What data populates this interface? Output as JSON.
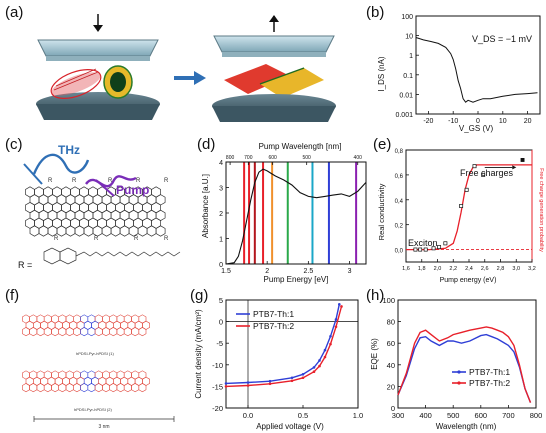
{
  "labels": {
    "a": "(a)",
    "b": "(b)",
    "c": "(c)",
    "d": "(d)",
    "e": "(e)",
    "f": "(f)",
    "g": "(g)",
    "h": "(h)"
  },
  "panel_c": {
    "thz": "THz",
    "pump": "Pump",
    "r_eq": "R =",
    "r": "R"
  },
  "panel_f": {
    "top_caption": "hPDSI-Pyr-hPDSI (1)",
    "bottom_caption": "hPDSI-Pyr-hPDSI (2)",
    "scale": "3 nm"
  },
  "colors": {
    "blue": "#2f3fd6",
    "red": "#e8202a",
    "orange_red": "#e0453a",
    "purple": "#7a2db8",
    "green": "#2aa94a"
  },
  "chart_data": [
    {
      "id": "b",
      "type": "line",
      "annotation": "V_DS = −1 mV",
      "ylabel": "I_DS (nA)",
      "xlabel": "V_GS (V)",
      "yscale": "log",
      "ylim": [
        0.001,
        100
      ],
      "xlim": [
        -25,
        25
      ],
      "yticks": [
        "100",
        "10",
        "1",
        "0.1",
        "0.01",
        "0.001"
      ],
      "xticks": [
        "-20",
        "-10",
        "0",
        "10",
        "20"
      ],
      "x": [
        -25,
        -22,
        -19,
        -16,
        -13,
        -11,
        -10,
        -9,
        -8,
        -7,
        -6,
        -5,
        -4,
        -2,
        0,
        2,
        5,
        10,
        15,
        20,
        24
      ],
      "y": [
        8,
        6,
        5,
        4,
        2.5,
        1.2,
        0.6,
        0.2,
        0.05,
        0.02,
        0.006,
        0.004,
        0.005,
        0.004,
        0.005,
        0.006,
        0.006,
        0.008,
        0.01,
        0.011,
        0.012
      ]
    },
    {
      "id": "d",
      "type": "line",
      "title": "Pump Wavelength [nm]",
      "xlabel": "Pump Energy [eV]",
      "ylabel": "Absorbance [a.U.]",
      "xlim": [
        1.5,
        3.2
      ],
      "ylim": [
        0,
        4
      ],
      "xticks": [
        "1.5",
        "2",
        "2.5",
        "3"
      ],
      "yticks": [
        "0",
        "1",
        "2",
        "3",
        "4"
      ],
      "top_ticks": [
        "1000",
        "900",
        "800",
        "700",
        "600",
        "500",
        "400"
      ],
      "x": [
        1.5,
        1.6,
        1.65,
        1.7,
        1.75,
        1.8,
        1.85,
        1.9,
        1.95,
        2.0,
        2.05,
        2.1,
        2.2,
        2.3,
        2.4,
        2.5,
        2.6,
        2.7,
        2.8,
        2.9,
        3.0,
        3.1,
        3.2
      ],
      "y": [
        0.0,
        0.05,
        0.3,
        0.9,
        1.7,
        2.5,
        3.2,
        3.6,
        3.72,
        3.65,
        3.55,
        3.45,
        3.3,
        3.1,
        2.8,
        2.65,
        2.6,
        2.65,
        2.7,
        2.75,
        2.65,
        2.85,
        3.2
      ],
      "pump_lines": [
        {
          "energy": 1.72,
          "color": "#e8202a"
        },
        {
          "energy": 1.78,
          "color": "#e8202a"
        },
        {
          "energy": 1.85,
          "color": "#b3151c"
        },
        {
          "energy": 1.95,
          "color": "#e8202a"
        },
        {
          "energy": 2.06,
          "color": "#f0902c"
        },
        {
          "energy": 2.25,
          "color": "#2aa94a"
        },
        {
          "energy": 2.55,
          "color": "#1aa7c8"
        },
        {
          "energy": 2.75,
          "color": "#2f3fd6"
        },
        {
          "energy": 3.08,
          "color": "#8a1fb0"
        }
      ]
    },
    {
      "id": "e",
      "type": "scatter",
      "xlabel": "Pump energy (eV)",
      "ylabel": "Real conductivity",
      "ylabel_right": "Free charge generation probability",
      "xlim": [
        1.6,
        3.2
      ],
      "ylim": [
        -0.1,
        0.8
      ],
      "xticks": [
        "1,6",
        "1,8",
        "2,0",
        "2,2",
        "2,4",
        "2,6",
        "2,8",
        "3,0",
        "3,2"
      ],
      "yticks": [
        "0,0",
        "0,2",
        "0,4",
        "0,6",
        "0,8"
      ],
      "annotations": [
        "Exciton",
        "Free charges"
      ],
      "points_x": [
        1.72,
        1.78,
        1.85,
        1.95,
        2.02,
        2.1,
        2.3,
        2.37,
        2.47,
        2.58,
        3.08
      ],
      "points_y": [
        0.0,
        0.0,
        0.0,
        0.01,
        0.02,
        0.05,
        0.35,
        0.48,
        0.67,
        0.6,
        0.72
      ],
      "sigmoid_x": [
        1.6,
        1.9,
        2.1,
        2.2,
        2.25,
        2.3,
        2.35,
        2.4,
        2.45,
        2.5,
        2.7,
        3.2
      ],
      "sigmoid_y": [
        0.0,
        0.0,
        0.01,
        0.05,
        0.15,
        0.3,
        0.48,
        0.6,
        0.66,
        0.68,
        0.68,
        0.68
      ]
    },
    {
      "id": "g",
      "type": "line",
      "xlabel": "Applied voltage (V)",
      "ylabel": "Current density (mA/cm²)",
      "xlim": [
        -0.2,
        1.0
      ],
      "ylim": [
        -20,
        5
      ],
      "xticks": [
        "0.0",
        "0.5",
        "1.0"
      ],
      "yticks": [
        "-20",
        "-15",
        "-10",
        "-5",
        "0",
        "5"
      ],
      "series": [
        {
          "name": "PTB7-Th:1",
          "color": "#2f3fd6",
          "x": [
            -0.2,
            0.0,
            0.2,
            0.4,
            0.5,
            0.6,
            0.65,
            0.7,
            0.75,
            0.8,
            0.83
          ],
          "y": [
            -14.3,
            -14.1,
            -13.8,
            -13.0,
            -12.2,
            -10.6,
            -9.0,
            -6.6,
            -3.4,
            0.5,
            4.0
          ]
        },
        {
          "name": "PTB7-Th:2",
          "color": "#e8202a",
          "x": [
            -0.2,
            0.0,
            0.2,
            0.4,
            0.5,
            0.6,
            0.65,
            0.7,
            0.75,
            0.8,
            0.85
          ],
          "y": [
            -15.0,
            -14.8,
            -14.4,
            -13.7,
            -13.0,
            -11.6,
            -10.3,
            -8.2,
            -5.2,
            -1.2,
            3.5
          ]
        }
      ]
    },
    {
      "id": "h",
      "type": "line",
      "xlabel": "Wavelength (nm)",
      "ylabel": "EQE (%)",
      "xlim": [
        300,
        800
      ],
      "ylim": [
        0,
        100
      ],
      "xticks": [
        "300",
        "400",
        "500",
        "600",
        "700",
        "800"
      ],
      "yticks": [
        "0",
        "20",
        "40",
        "60",
        "80",
        "100"
      ],
      "series": [
        {
          "name": "PTB7-Th:1",
          "color": "#2f3fd6",
          "x": [
            300,
            330,
            360,
            380,
            400,
            420,
            450,
            480,
            500,
            530,
            560,
            600,
            620,
            640,
            660,
            680,
            700,
            720,
            740,
            760,
            780
          ],
          "y": [
            12,
            30,
            55,
            65,
            66,
            62,
            58,
            62,
            62,
            60,
            62,
            67,
            68,
            66,
            64,
            61,
            58,
            52,
            38,
            18,
            5
          ]
        },
        {
          "name": "PTB7-Th:2",
          "color": "#e8202a",
          "x": [
            300,
            330,
            360,
            380,
            400,
            420,
            450,
            480,
            500,
            530,
            560,
            600,
            620,
            640,
            660,
            680,
            700,
            720,
            740,
            760,
            780
          ],
          "y": [
            12,
            32,
            60,
            70,
            72,
            68,
            62,
            65,
            68,
            70,
            72,
            74,
            75,
            74,
            72,
            70,
            66,
            58,
            40,
            18,
            5
          ]
        }
      ]
    }
  ]
}
